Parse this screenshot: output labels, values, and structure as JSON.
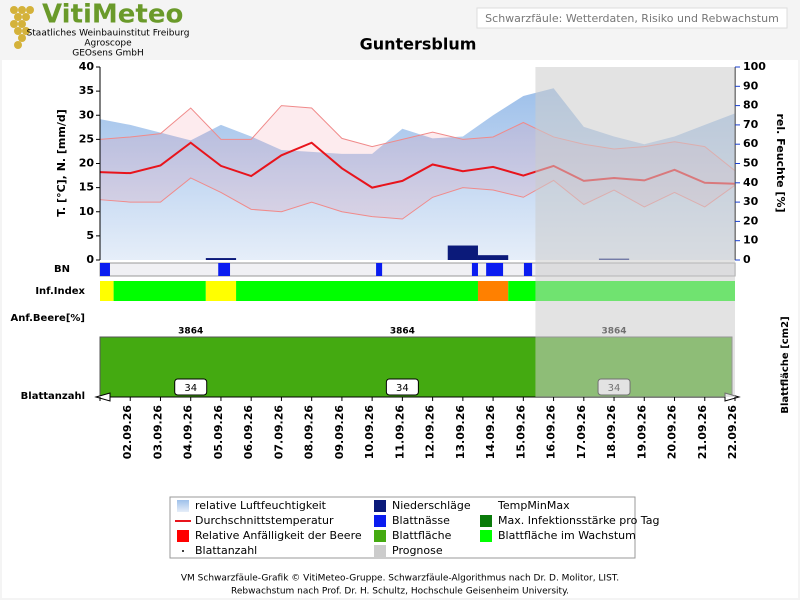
{
  "header": {
    "logo": "VitiMeteo",
    "lines": [
      "Staatliches Weinbauinstitut Freiburg",
      "Agroscope",
      "GEOsens GmbH"
    ],
    "banner": "Schwarzfäule: Wetterdaten, Risiko und Rebwachstum"
  },
  "chart_data": {
    "type": "line",
    "title": "Guntersblum",
    "categories": [
      null,
      "02.09.26",
      "03.09.26",
      "04.09.26",
      "05.09.26",
      "06.09.26",
      "07.09.26",
      "08.09.26",
      "09.09.26",
      "10.09.26",
      "11.09.26",
      "12.09.26",
      "13.09.26",
      "14.09.26",
      "15.09.26",
      "16.09.26",
      "17.09.26",
      "18.09.26",
      "19.09.26",
      "20.09.26",
      "21.09.26",
      "22.09.26"
    ],
    "ylabel": "T. [°C], N. [mm/d]",
    "ylim": [
      0,
      40
    ],
    "yticks": [
      0,
      5,
      10,
      15,
      20,
      25,
      30,
      35,
      40
    ],
    "y2label": "rel. Feuchte [%]",
    "y2lim": [
      0,
      100
    ],
    "y2ticks": [
      0,
      10,
      20,
      30,
      40,
      50,
      60,
      70,
      80,
      90,
      100
    ],
    "series": [
      {
        "name": "relative Luftfeuchtigkeit",
        "color": "#a9c8ec",
        "axis": "y2",
        "values": [
          73,
          70,
          66,
          62,
          70,
          64,
          57,
          56,
          55,
          55,
          68,
          63,
          64,
          75,
          85,
          89,
          69,
          64,
          60,
          64,
          70,
          76
        ]
      },
      {
        "name": "TempMinMax",
        "color": "#f08a8a",
        "values": [
          25,
          25.5,
          26.2,
          31.5,
          25,
          25,
          32,
          31.5,
          25.2,
          23.5,
          25,
          26.5,
          25,
          25.5,
          28.5,
          25.5,
          24,
          23,
          23.5,
          24.5,
          23.5,
          18.5
        ],
        "low": [
          12.5,
          12,
          12,
          17,
          14,
          10.5,
          10,
          12,
          10,
          9,
          8.5,
          13,
          15,
          14.5,
          13,
          16.5,
          11.5,
          14.5,
          11,
          14,
          11,
          15.5
        ]
      },
      {
        "name": "Durchschnittstemperatur",
        "color": "#e8141c",
        "values": [
          18.2,
          18,
          19.6,
          24.3,
          19.5,
          17.4,
          21.7,
          24.3,
          19,
          15,
          16.4,
          19.8,
          18.4,
          19.3,
          17.5,
          19.5,
          16.4,
          17,
          16.5,
          18.7,
          16,
          15.8
        ]
      },
      {
        "name": "Niederschläge",
        "color": "#0b1a7a",
        "values": [
          0,
          0,
          0,
          0,
          0.4,
          0,
          0,
          0,
          0,
          0,
          0,
          0,
          3,
          1,
          0,
          0,
          0,
          0.3,
          0,
          0,
          0,
          0
        ]
      }
    ],
    "bn": {
      "label": "BN",
      "name": "Blattnässe",
      "color": "#0a1cf0",
      "segments": [
        [
          0,
          0.33
        ],
        [
          3.91,
          4.3
        ],
        [
          9.13,
          9.33
        ],
        [
          12.3,
          12.5
        ],
        [
          12.77,
          13.33
        ],
        [
          14.02,
          14.29
        ]
      ]
    },
    "inf_index": {
      "label": "Inf.Index",
      "name": "Max. Infektionsstärke pro Tag",
      "color": "#0a7a0a",
      "segments": [
        {
          "from": 0,
          "to": 0.45,
          "color": "#ffff00"
        },
        {
          "from": 0.45,
          "to": 3.5,
          "color": "#00ff00"
        },
        {
          "from": 3.5,
          "to": 4.5,
          "color": "#ffff00"
        },
        {
          "from": 4.5,
          "to": 12.5,
          "color": "#00ff00"
        },
        {
          "from": 12.5,
          "to": 13.5,
          "color": "#ff8000"
        },
        {
          "from": 13.5,
          "to": 21,
          "color": "#00ff00"
        }
      ]
    },
    "berry": {
      "label": "Anf.Beere[%]",
      "name": "Relative Anfälligkeit der Beere",
      "color": "#ff0000"
    },
    "leaf_area": {
      "label": "Blattfläche [cm2]",
      "name": "Blattfläche",
      "color": "#44aa11",
      "growth_name": "Blattfläche im Wachstum",
      "growth_color": "#00ff00",
      "values": [
        {
          "x": 3,
          "value": 3864
        },
        {
          "x": 10,
          "value": 3864
        },
        {
          "x": 17,
          "value": 3864
        }
      ]
    },
    "leaf_count": {
      "label": "Blattanzahl",
      "values": [
        {
          "x": 3,
          "value": 34
        },
        {
          "x": 10,
          "value": 34
        },
        {
          "x": 17,
          "value": 34
        }
      ]
    },
    "prognose": {
      "name": "Prognose",
      "from": 14.4,
      "color": "#cccccc"
    }
  },
  "footer": [
    "VM Schwarzfäule-Grafik © VitiMeteo-Gruppe. Schwarzfäule-Algorithmus nach Dr. D. Molitor, LIST.",
    "Rebwachstum nach Prof. Dr. H. Schultz, Hochschule Geisenheim University."
  ]
}
